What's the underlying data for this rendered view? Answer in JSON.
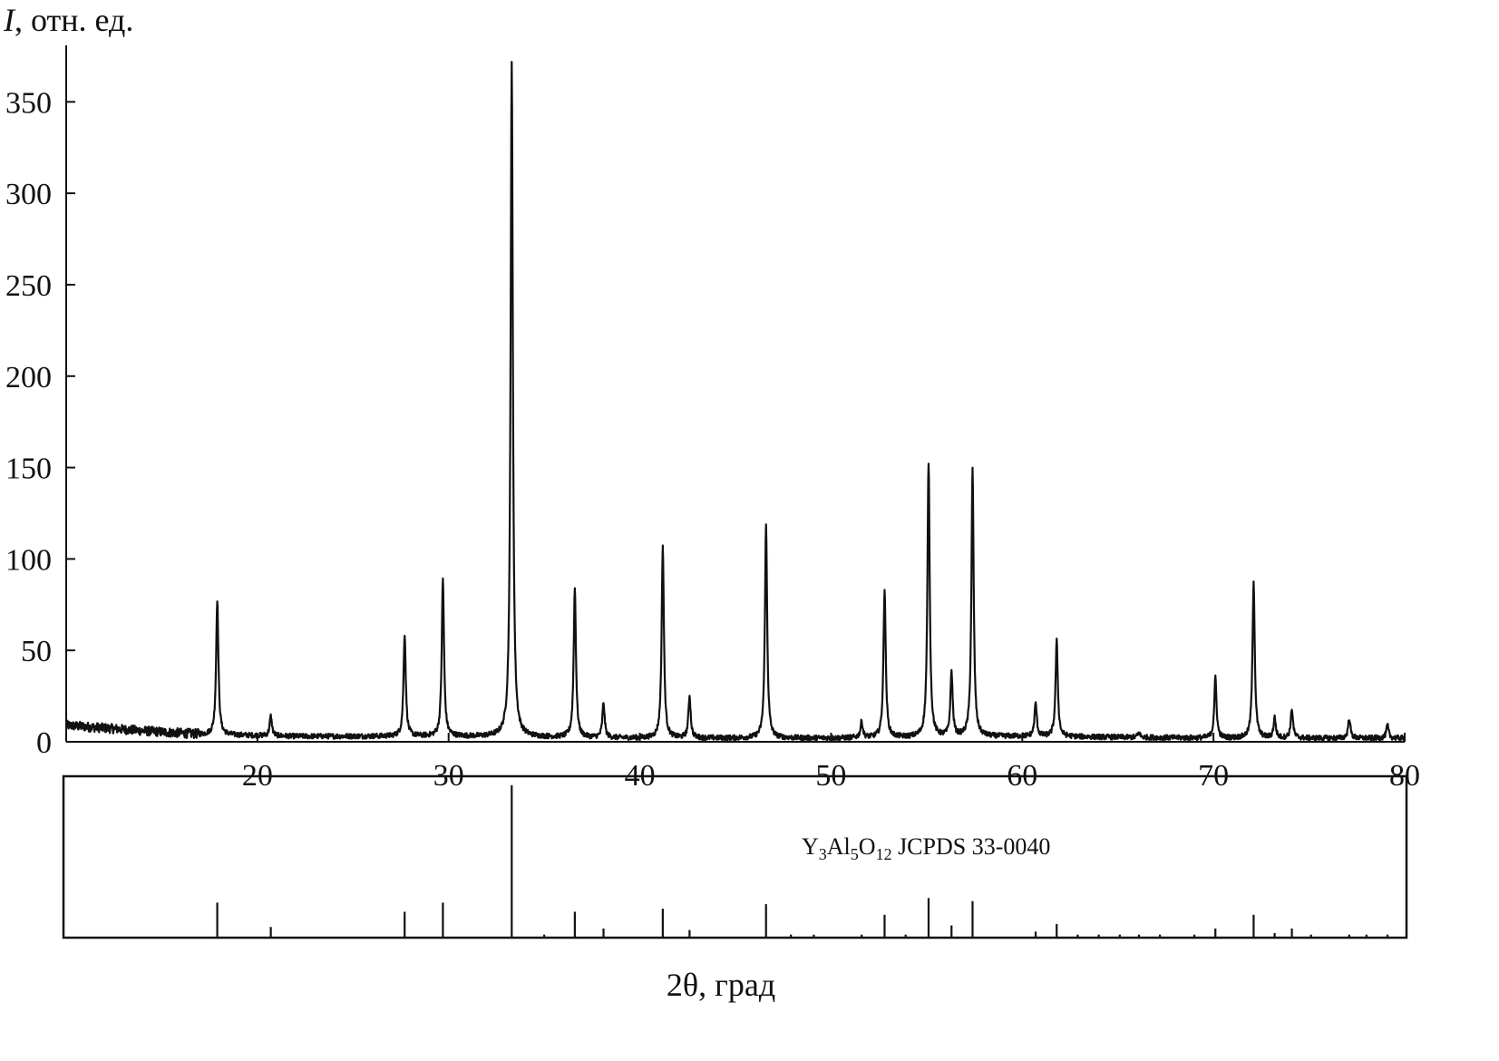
{
  "chart_data": {
    "type": "line",
    "ylabel_symbol": "I",
    "ylabel_rest": ", отн. ед.",
    "xlabel": "2θ, град",
    "xlim": [
      10,
      80
    ],
    "ylim": [
      0,
      370
    ],
    "xticks": [
      20,
      30,
      40,
      50,
      60,
      70,
      80
    ],
    "yticks": [
      0,
      50,
      100,
      150,
      200,
      250,
      300,
      350
    ],
    "grid": false,
    "series": [
      {
        "baseline": [
          [
            10,
            9
          ],
          [
            14,
            6
          ],
          [
            17,
            4
          ],
          [
            22,
            3
          ],
          [
            30,
            3
          ],
          [
            40,
            2
          ],
          [
            50,
            2
          ],
          [
            60,
            3
          ],
          [
            70,
            2
          ],
          [
            80,
            2
          ]
        ],
        "peaks": [
          {
            "x": 17.9,
            "y": 78
          },
          {
            "x": 20.7,
            "y": 14
          },
          {
            "x": 27.7,
            "y": 59
          },
          {
            "x": 29.7,
            "y": 89
          },
          {
            "x": 33.3,
            "y": 372
          },
          {
            "x": 36.6,
            "y": 84
          },
          {
            "x": 38.1,
            "y": 21
          },
          {
            "x": 41.2,
            "y": 107
          },
          {
            "x": 42.6,
            "y": 25
          },
          {
            "x": 46.6,
            "y": 118
          },
          {
            "x": 51.6,
            "y": 11
          },
          {
            "x": 52.8,
            "y": 84
          },
          {
            "x": 55.1,
            "y": 153
          },
          {
            "x": 56.3,
            "y": 38
          },
          {
            "x": 57.4,
            "y": 149
          },
          {
            "x": 60.7,
            "y": 21
          },
          {
            "x": 61.8,
            "y": 55
          },
          {
            "x": 66.1,
            "y": 5
          },
          {
            "x": 70.1,
            "y": 35
          },
          {
            "x": 72.1,
            "y": 88
          },
          {
            "x": 73.2,
            "y": 13
          },
          {
            "x": 74.1,
            "y": 18
          },
          {
            "x": 77.1,
            "y": 13
          },
          {
            "x": 79.1,
            "y": 9
          }
        ]
      }
    ],
    "reference": {
      "label_parts": [
        {
          "text": "Y"
        },
        {
          "text": "3",
          "sub": true
        },
        {
          "text": "Al"
        },
        {
          "text": "5",
          "sub": true
        },
        {
          "text": "O"
        },
        {
          "text": "12",
          "sub": true
        },
        {
          "text": " JCPDS 33-0040"
        }
      ],
      "ylim": [
        0,
        100
      ],
      "lines": [
        {
          "x": 17.9,
          "y": 23
        },
        {
          "x": 20.7,
          "y": 7
        },
        {
          "x": 27.7,
          "y": 17
        },
        {
          "x": 29.7,
          "y": 23
        },
        {
          "x": 33.3,
          "y": 100
        },
        {
          "x": 35.0,
          "y": 2
        },
        {
          "x": 36.6,
          "y": 17
        },
        {
          "x": 38.1,
          "y": 6
        },
        {
          "x": 41.2,
          "y": 19
        },
        {
          "x": 42.6,
          "y": 5
        },
        {
          "x": 46.6,
          "y": 22
        },
        {
          "x": 47.9,
          "y": 2
        },
        {
          "x": 49.1,
          "y": 2
        },
        {
          "x": 51.6,
          "y": 2
        },
        {
          "x": 52.8,
          "y": 15
        },
        {
          "x": 53.9,
          "y": 2
        },
        {
          "x": 55.1,
          "y": 26
        },
        {
          "x": 56.3,
          "y": 8
        },
        {
          "x": 57.4,
          "y": 24
        },
        {
          "x": 60.7,
          "y": 4
        },
        {
          "x": 61.8,
          "y": 9
        },
        {
          "x": 62.9,
          "y": 2
        },
        {
          "x": 64.0,
          "y": 2
        },
        {
          "x": 65.1,
          "y": 2
        },
        {
          "x": 66.1,
          "y": 2
        },
        {
          "x": 67.2,
          "y": 2
        },
        {
          "x": 69.0,
          "y": 2
        },
        {
          "x": 70.1,
          "y": 6
        },
        {
          "x": 72.1,
          "y": 15
        },
        {
          "x": 73.2,
          "y": 3
        },
        {
          "x": 74.1,
          "y": 6
        },
        {
          "x": 75.1,
          "y": 2
        },
        {
          "x": 77.1,
          "y": 2
        },
        {
          "x": 78.0,
          "y": 2
        },
        {
          "x": 79.1,
          "y": 2
        }
      ]
    }
  }
}
